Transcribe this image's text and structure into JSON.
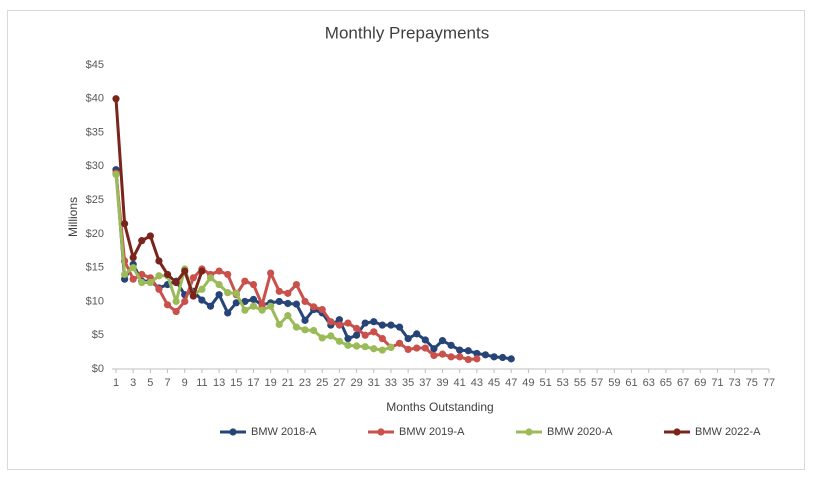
{
  "chart_data": {
    "type": "line",
    "title": "Monthly Prepayments",
    "x_label": "Months Outstanding",
    "y_label": "Millions",
    "xlim": [
      1,
      77
    ],
    "xticks": [
      1,
      3,
      5,
      7,
      9,
      11,
      13,
      15,
      17,
      19,
      21,
      23,
      25,
      27,
      29,
      31,
      33,
      35,
      37,
      39,
      41,
      43,
      45,
      47,
      49,
      51,
      53,
      55,
      57,
      59,
      61,
      63,
      65,
      67,
      69,
      71,
      73,
      75,
      77
    ],
    "ylim": [
      0,
      45
    ],
    "yticks": [
      {
        "value": 0,
        "label": "$0"
      },
      {
        "value": 5,
        "label": "$5"
      },
      {
        "value": 10,
        "label": "$10"
      },
      {
        "value": 15,
        "label": "$15"
      },
      {
        "value": 20,
        "label": "$20"
      },
      {
        "value": 25,
        "label": "$25"
      },
      {
        "value": 30,
        "label": "$30"
      },
      {
        "value": 35,
        "label": "$35"
      },
      {
        "value": 40,
        "label": "$40"
      },
      {
        "value": 45,
        "label": "$45"
      }
    ],
    "grid": false,
    "legend": "bottom",
    "series": [
      {
        "name": "BMW 2018-A",
        "color": "#264478",
        "x": [
          1,
          2,
          3,
          4,
          5,
          6,
          7,
          8,
          9,
          10,
          11,
          12,
          13,
          14,
          15,
          16,
          17,
          18,
          19,
          20,
          21,
          22,
          23,
          24,
          25,
          26,
          27,
          28,
          29,
          30,
          31,
          32,
          33,
          34,
          35,
          36,
          37,
          38,
          39,
          40,
          41,
          42,
          43,
          44,
          45,
          46,
          47
        ],
        "values": [
          29.5,
          13.3,
          15.5,
          13.0,
          13.0,
          12.0,
          12.5,
          13.0,
          11.0,
          11.5,
          10.2,
          9.3,
          11.0,
          8.3,
          9.8,
          10.0,
          10.3,
          9.5,
          9.8,
          10.0,
          9.7,
          9.6,
          7.2,
          8.8,
          8.3,
          6.5,
          7.3,
          4.5,
          5.0,
          6.8,
          7.0,
          6.5,
          6.5,
          6.2,
          4.5,
          5.2,
          4.3,
          3.0,
          4.2,
          3.5,
          2.8,
          2.7,
          2.3,
          2.1,
          1.8,
          1.7,
          1.5
        ]
      },
      {
        "name": "BMW 2019-A",
        "color": "#c9504b",
        "x": [
          1,
          2,
          3,
          4,
          5,
          6,
          7,
          8,
          9,
          10,
          11,
          12,
          13,
          14,
          15,
          16,
          17,
          18,
          19,
          20,
          21,
          22,
          23,
          24,
          25,
          26,
          27,
          28,
          29,
          30,
          31,
          32,
          33,
          34,
          35,
          36,
          37,
          38,
          39,
          40,
          41,
          42,
          43
        ],
        "values": [
          29.0,
          16.0,
          13.3,
          14.0,
          13.5,
          11.8,
          9.5,
          8.5,
          10.0,
          13.5,
          14.8,
          14.0,
          14.5,
          14.0,
          11.0,
          13.0,
          12.5,
          9.5,
          14.2,
          11.5,
          11.2,
          12.5,
          10.0,
          9.2,
          8.8,
          7.0,
          6.5,
          6.8,
          6.0,
          5.0,
          5.5,
          4.5,
          3.2,
          3.8,
          2.9,
          3.1,
          3.1,
          2.0,
          2.2,
          1.8,
          1.8,
          1.4,
          1.5
        ]
      },
      {
        "name": "BMW 2020-A",
        "color": "#9bbb59",
        "x": [
          1,
          2,
          3,
          4,
          5,
          6,
          7,
          8,
          9,
          10,
          11,
          12,
          13,
          14,
          15,
          16,
          17,
          18,
          19,
          20,
          21,
          22,
          23,
          24,
          25,
          26,
          27,
          28,
          29,
          30,
          31,
          32,
          33
        ],
        "values": [
          28.8,
          14.0,
          15.0,
          12.8,
          12.8,
          13.8,
          13.8,
          10.0,
          14.8,
          11.0,
          11.8,
          13.5,
          12.5,
          11.3,
          11.2,
          8.7,
          9.3,
          8.7,
          9.3,
          6.6,
          7.9,
          6.2,
          5.8,
          5.7,
          4.6,
          4.9,
          4.1,
          3.5,
          3.4,
          3.3,
          3.0,
          2.8,
          3.2
        ]
      },
      {
        "name": "BMW 2022-A",
        "color": "#7b241c",
        "x": [
          1,
          2,
          3,
          4,
          5,
          6,
          7,
          8,
          9,
          10,
          11
        ],
        "values": [
          40.0,
          21.5,
          16.5,
          19.0,
          19.7,
          16.0,
          14.0,
          12.8,
          14.5,
          10.8,
          14.5
        ]
      }
    ]
  }
}
